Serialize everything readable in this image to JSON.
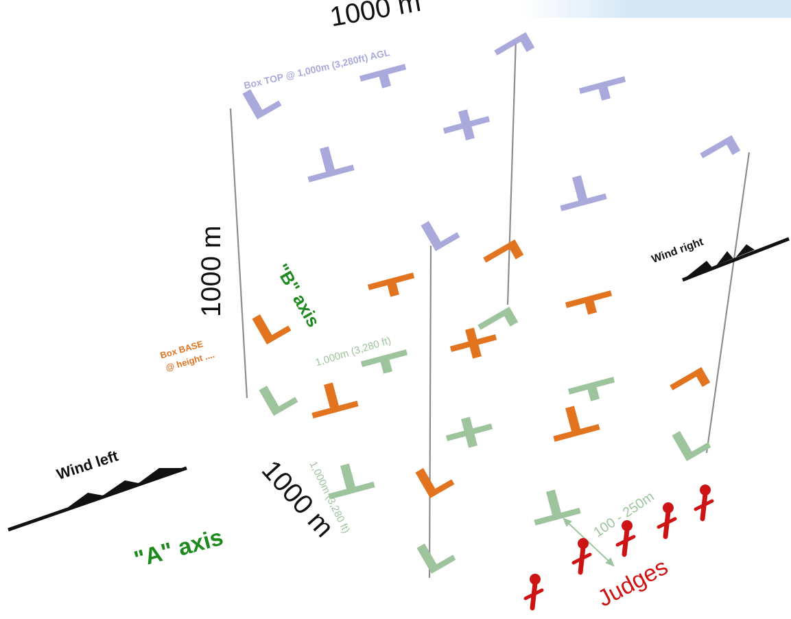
{
  "colors": {
    "top": "#a9a9dc",
    "base": "#e27420",
    "ground": "#9dc49d",
    "axis_text": "#1e8a1e",
    "judges": "#cc1414",
    "frame": "#8c8c8c",
    "wind": "#111111"
  },
  "labels": {
    "dim_top": "1000 m",
    "dim_vertical": "1000 m",
    "dim_depth": "1000 m",
    "box_top": "Box TOP @ 1,000m (3,280ft) AGL",
    "box_base_line1": "Box BASE",
    "box_base_line2": "@ height ....",
    "b_axis": "\"B\" axis",
    "a_axis": "\"A\" axis",
    "ground_b": "1,000m (3,280 ft)",
    "ground_a": "1,000m (3,280 ft)",
    "wind_left": "Wind left",
    "wind_right": "Wind right",
    "distance": "100 - 250m",
    "judges": "Judges"
  }
}
